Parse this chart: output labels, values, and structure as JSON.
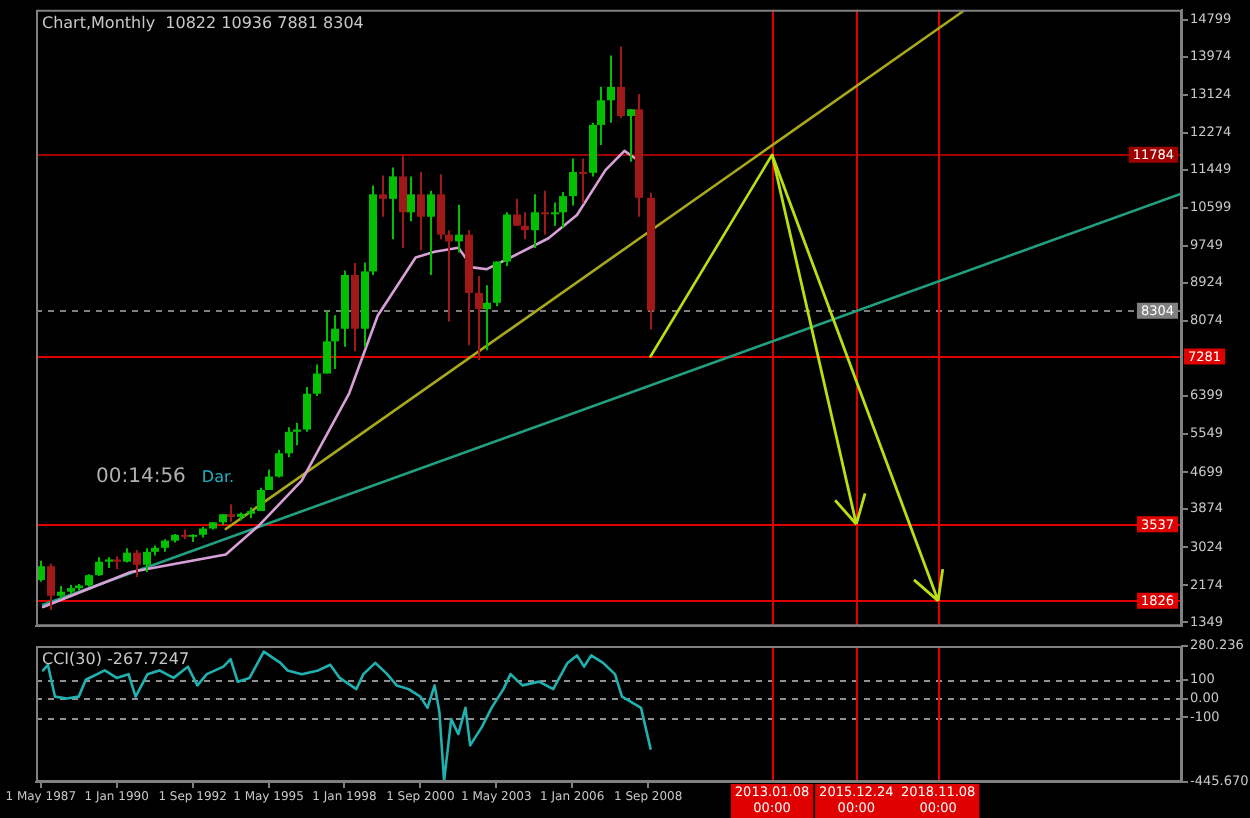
{
  "chart_data": [
    {
      "type": "candlestick",
      "title": "Chart,Monthly  10822 10936 7881 8304",
      "x": [
        "1987-05",
        "1987-09",
        "1988-01",
        "1988-05",
        "1988-09",
        "1989-01",
        "1989-05",
        "1989-09",
        "1990-01",
        "1990-05",
        "1990-09",
        "1991-01",
        "1991-05",
        "1991-09",
        "1992-01",
        "1992-05",
        "1992-09",
        "1993-01",
        "1993-05",
        "1993-09",
        "1994-01",
        "1994-05",
        "1994-09",
        "1995-01",
        "1995-05",
        "1995-09",
        "1996-01",
        "1996-05",
        "1996-09",
        "1997-01",
        "1997-05",
        "1997-09",
        "1998-01",
        "1998-05",
        "1998-09",
        "1999-01",
        "1999-05",
        "1999-09",
        "2000-01",
        "2000-05",
        "2000-09",
        "2001-01",
        "2001-05",
        "2001-09",
        "2002-01",
        "2002-05",
        "2002-09",
        "2003-01",
        "2003-05",
        "2003-09",
        "2004-01",
        "2004-05",
        "2004-09",
        "2005-01",
        "2005-05",
        "2005-09",
        "2006-01",
        "2006-05",
        "2006-09",
        "2007-01",
        "2007-05",
        "2007-09",
        "2008-01",
        "2008-05",
        "2008-10"
      ],
      "ohlc": [
        [
          2290,
          2720,
          2250,
          2600
        ],
        [
          2600,
          2660,
          1620,
          1940
        ],
        [
          1940,
          2160,
          1880,
          2030
        ],
        [
          2030,
          2180,
          1980,
          2110
        ],
        [
          2110,
          2200,
          2060,
          2170
        ],
        [
          2170,
          2420,
          2140,
          2400
        ],
        [
          2400,
          2800,
          2380,
          2700
        ],
        [
          2700,
          2800,
          2560,
          2750
        ],
        [
          2750,
          2820,
          2530,
          2700
        ],
        [
          2700,
          3000,
          2680,
          2900
        ],
        [
          2900,
          2960,
          2360,
          2630
        ],
        [
          2630,
          3000,
          2470,
          2920
        ],
        [
          2920,
          3060,
          2840,
          3010
        ],
        [
          3010,
          3200,
          2920,
          3170
        ],
        [
          3170,
          3320,
          3130,
          3300
        ],
        [
          3300,
          3420,
          3200,
          3280
        ],
        [
          3280,
          3310,
          3140,
          3300
        ],
        [
          3300,
          3480,
          3240,
          3440
        ],
        [
          3440,
          3580,
          3420,
          3580
        ],
        [
          3580,
          3760,
          3520,
          3760
        ],
        [
          3760,
          3980,
          3590,
          3700
        ],
        [
          3700,
          3800,
          3620,
          3770
        ],
        [
          3770,
          3910,
          3670,
          3830
        ],
        [
          3830,
          4350,
          3830,
          4300
        ],
        [
          4300,
          4760,
          4300,
          4600
        ],
        [
          4600,
          5200,
          4580,
          5120
        ],
        [
          5120,
          5700,
          5030,
          5600
        ],
        [
          5600,
          5800,
          5300,
          5650
        ],
        [
          5650,
          6600,
          5600,
          6450
        ],
        [
          6450,
          7100,
          6400,
          6900
        ],
        [
          6900,
          8300,
          6900,
          7620
        ],
        [
          7620,
          8200,
          7000,
          7900
        ],
        [
          7900,
          9200,
          7500,
          9100
        ],
        [
          9100,
          9370,
          7400,
          7900
        ],
        [
          7900,
          9380,
          7500,
          9180
        ],
        [
          9180,
          11100,
          9100,
          10900
        ],
        [
          10900,
          11320,
          10400,
          10800
        ],
        [
          10800,
          11500,
          9900,
          11300
        ],
        [
          11300,
          11750,
          9700,
          10500
        ],
        [
          10500,
          11300,
          10300,
          10900
        ],
        [
          10900,
          11400,
          9650,
          10400
        ],
        [
          10400,
          10980,
          9100,
          10900
        ],
        [
          10900,
          11350,
          9900,
          10000
        ],
        [
          10000,
          10100,
          8060,
          9850
        ],
        [
          9850,
          10670,
          9600,
          10000
        ],
        [
          10000,
          10100,
          7530,
          8700
        ],
        [
          8700,
          9080,
          7200,
          8340
        ],
        [
          8340,
          8870,
          7420,
          8480
        ],
        [
          8480,
          9400,
          8400,
          9400
        ],
        [
          9400,
          10500,
          9300,
          10450
        ],
        [
          10450,
          10800,
          10200,
          10200
        ],
        [
          10200,
          10500,
          9900,
          10100
        ],
        [
          10100,
          10900,
          9700,
          10500
        ],
        [
          10500,
          10980,
          10000,
          10480
        ],
        [
          10480,
          10720,
          10200,
          10500
        ],
        [
          10500,
          10950,
          10150,
          10860
        ],
        [
          10860,
          11700,
          10650,
          11400
        ],
        [
          11400,
          11700,
          10700,
          11380
        ],
        [
          11380,
          12500,
          11300,
          12450
        ],
        [
          12450,
          13300,
          12000,
          13000
        ],
        [
          13000,
          14000,
          12500,
          13300
        ],
        [
          13300,
          14200,
          12600,
          12650
        ],
        [
          12650,
          12800,
          11630,
          12800
        ],
        [
          12800,
          13140,
          10400,
          10822
        ],
        [
          10822,
          10936,
          7881,
          8304
        ]
      ],
      "colors": [
        "#00c000",
        "#a01818",
        "#00c000",
        "#00c000",
        "#00c000",
        "#00c000",
        "#00c000",
        "#00c000",
        "#a01818",
        "#00c000",
        "#a01818",
        "#00c000",
        "#00c000",
        "#00c000",
        "#00c000",
        "#a01818",
        "#00c000",
        "#00c000",
        "#00c000",
        "#00c000",
        "#a01818",
        "#00c000",
        "#00c000",
        "#00c000",
        "#00c000",
        "#00c000",
        "#00c000",
        "#00c000",
        "#00c000",
        "#00c000",
        "#00c000",
        "#00c000",
        "#00c000",
        "#a01818",
        "#00c000",
        "#00c000",
        "#a01818",
        "#00c000",
        "#a01818",
        "#00c000",
        "#a01818",
        "#00c000",
        "#a01818",
        "#a01818",
        "#00c000",
        "#a01818",
        "#a01818",
        "#00c000",
        "#00c000",
        "#00c000",
        "#a01818",
        "#a01818",
        "#00c000",
        "#a01818",
        "#00c000",
        "#00c000",
        "#00c000",
        "#a01818",
        "#00c000",
        "#00c000",
        "#00c000",
        "#a01818",
        "#00c000",
        "#a01818",
        "#a01818"
      ],
      "series": [
        {
          "type": "line",
          "color": "#d8a0d8",
          "x": [
            "1987-06",
            "1990-07",
            "1993-11",
            "1995-01",
            "1996-07",
            "1998-03",
            "1999-03",
            "2000-07",
            "2001-03",
            "2002-01",
            "2002-07",
            "2003-01",
            "2003-11",
            "2005-03",
            "2006-03",
            "2007-03",
            "2007-11",
            "2008-05"
          ],
          "values": [
            1690,
            2470,
            2860,
            3510,
            4510,
            6460,
            8190,
            9490,
            9620,
            9710,
            9270,
            9230,
            9490,
            9920,
            10440,
            11440,
            11870,
            11650
          ]
        },
        {
          "type": "line",
          "color": "#a8a818",
          "x": [
            "1993-11",
            "2019-10"
          ],
          "values": [
            3430,
            15000
          ]
        },
        {
          "type": "line",
          "color": "#20a080",
          "x": [
            "1987-06",
            "2027-06"
          ],
          "values": [
            1740,
            10920
          ]
        },
        {
          "type": "line",
          "color": "#b8e010",
          "x": [
            "2008-10",
            "2013-01-08"
          ],
          "values": [
            7281,
            11784
          ]
        }
      ],
      "xlim": [
        "1987-03",
        "2027-06"
      ],
      "ylim": [
        1260,
        15020
      ],
      "yticks": [
        14799,
        13974,
        13124,
        12274,
        11449,
        10599,
        9749,
        8924,
        8074,
        6399,
        5549,
        4699,
        3874,
        3024,
        2174,
        1349
      ],
      "tick_labels": "y",
      "marker": "none",
      "grid": false,
      "legend": false,
      "ref_lines": [
        {
          "axis": "y",
          "value": 11784,
          "label": "11784",
          "color": "#a00000"
        },
        {
          "axis": "y",
          "value": 8304,
          "label": "8304",
          "color": "#808080",
          "line_style": "dashed"
        },
        {
          "axis": "y",
          "value": 7281,
          "label": "7281",
          "color": "#e00000"
        },
        {
          "axis": "y",
          "value": 3537,
          "label": "3537",
          "color": "#e00000"
        },
        {
          "axis": "y",
          "value": 1826,
          "label": "1826",
          "color": "#e00000"
        },
        {
          "axis": "x",
          "value": "2013-01-08T00:00",
          "color": "#e00000"
        },
        {
          "axis": "x",
          "value": "2015-12-24T00:00",
          "color": "#e00000"
        },
        {
          "axis": "x",
          "value": "2018-11-08T00:00",
          "color": "#e00000"
        }
      ],
      "annotations": [
        "00:14:56",
        "Dar."
      ]
    },
    {
      "type": "line",
      "title": "CCI(30) -267.7247",
      "color": "#20b0b0",
      "x": [
        "1987-06",
        "1987-08",
        "1987-11",
        "1988-04",
        "1988-09",
        "1988-12",
        "1989-08",
        "1990-01",
        "1990-06",
        "1990-09",
        "1991-02",
        "1991-07",
        "1992-01",
        "1992-07",
        "1992-11",
        "1993-03",
        "1993-10",
        "1994-01",
        "1994-04",
        "1994-09",
        "1995-03",
        "1995-10",
        "1996-01",
        "1996-07",
        "1997-02",
        "1997-07",
        "1997-11",
        "1998-06",
        "1998-09",
        "1999-02",
        "1999-07",
        "1999-11",
        "2000-04",
        "2000-09",
        "2000-12",
        "2001-03",
        "2001-05",
        "2001-07",
        "2001-10",
        "2002-01",
        "2002-04",
        "2002-06",
        "2002-11",
        "2003-03",
        "2003-08",
        "2003-11",
        "2004-04",
        "2004-11",
        "2005-05",
        "2005-11",
        "2006-03",
        "2006-06",
        "2006-09",
        "2007-02",
        "2007-07",
        "2007-10",
        "2008-06",
        "2008-10"
      ],
      "values": [
        150,
        180,
        10,
        0,
        10,
        100,
        150,
        110,
        130,
        10,
        130,
        150,
        110,
        170,
        70,
        130,
        170,
        210,
        90,
        110,
        250,
        190,
        150,
        130,
        150,
        180,
        110,
        50,
        130,
        190,
        130,
        70,
        50,
        10,
        -50,
        70,
        -70,
        -440,
        -110,
        -190,
        -50,
        -250,
        -150,
        -50,
        50,
        130,
        70,
        90,
        50,
        190,
        230,
        170,
        230,
        190,
        130,
        10,
        -50,
        -267.7247
      ],
      "xlim": [
        "1987-03",
        "2027-06"
      ],
      "xticks": [
        {
          "value": "1987-05-01",
          "label": "1 May 1987"
        },
        {
          "value": "1990-01-01",
          "label": "1 Jan 1990"
        },
        {
          "value": "1992-09-01",
          "label": "1 Sep 1992"
        },
        {
          "value": "1995-05-01",
          "label": "1 May 1995"
        },
        {
          "value": "1998-01-01",
          "label": "1 Jan 1998"
        },
        {
          "value": "2000-09-01",
          "label": "1 Sep 2000"
        },
        {
          "value": "2003-05-01",
          "label": "1 May 2003"
        },
        {
          "value": "2006-01-01",
          "label": "1 Jan 2006"
        },
        {
          "value": "2008-09-01",
          "label": "1 Sep 2008"
        }
      ],
      "ylim": [
        -445.67,
        280.236
      ],
      "yticks": [
        {
          "value": 280.236,
          "label": "280.236"
        },
        100,
        {
          "value": 0,
          "label": "0.00"
        },
        -100,
        {
          "value": -445.67,
          "label": "-445.670"
        }
      ],
      "marker": "none",
      "grid": false,
      "legend": false,
      "ref_lines": [
        {
          "axis": "y",
          "value": 100,
          "color": "#909090",
          "line_style": "dashed"
        },
        {
          "axis": "y",
          "value": 0,
          "color": "#909090",
          "line_style": "dashed"
        },
        {
          "axis": "y",
          "value": -100,
          "color": "#909090",
          "line_style": "dashed"
        },
        {
          "axis": "x",
          "value": "2013-01-08T00:00",
          "label": "2013.01.08 00:00",
          "color": "#e00000"
        },
        {
          "axis": "x",
          "value": "2015-12-24T00:00",
          "label": "2015.12.24 00:00",
          "color": "#e00000"
        },
        {
          "axis": "x",
          "value": "2018-11-08T00:00",
          "label": "2018.11.08 00:00",
          "color": "#e00000"
        }
      ]
    }
  ]
}
